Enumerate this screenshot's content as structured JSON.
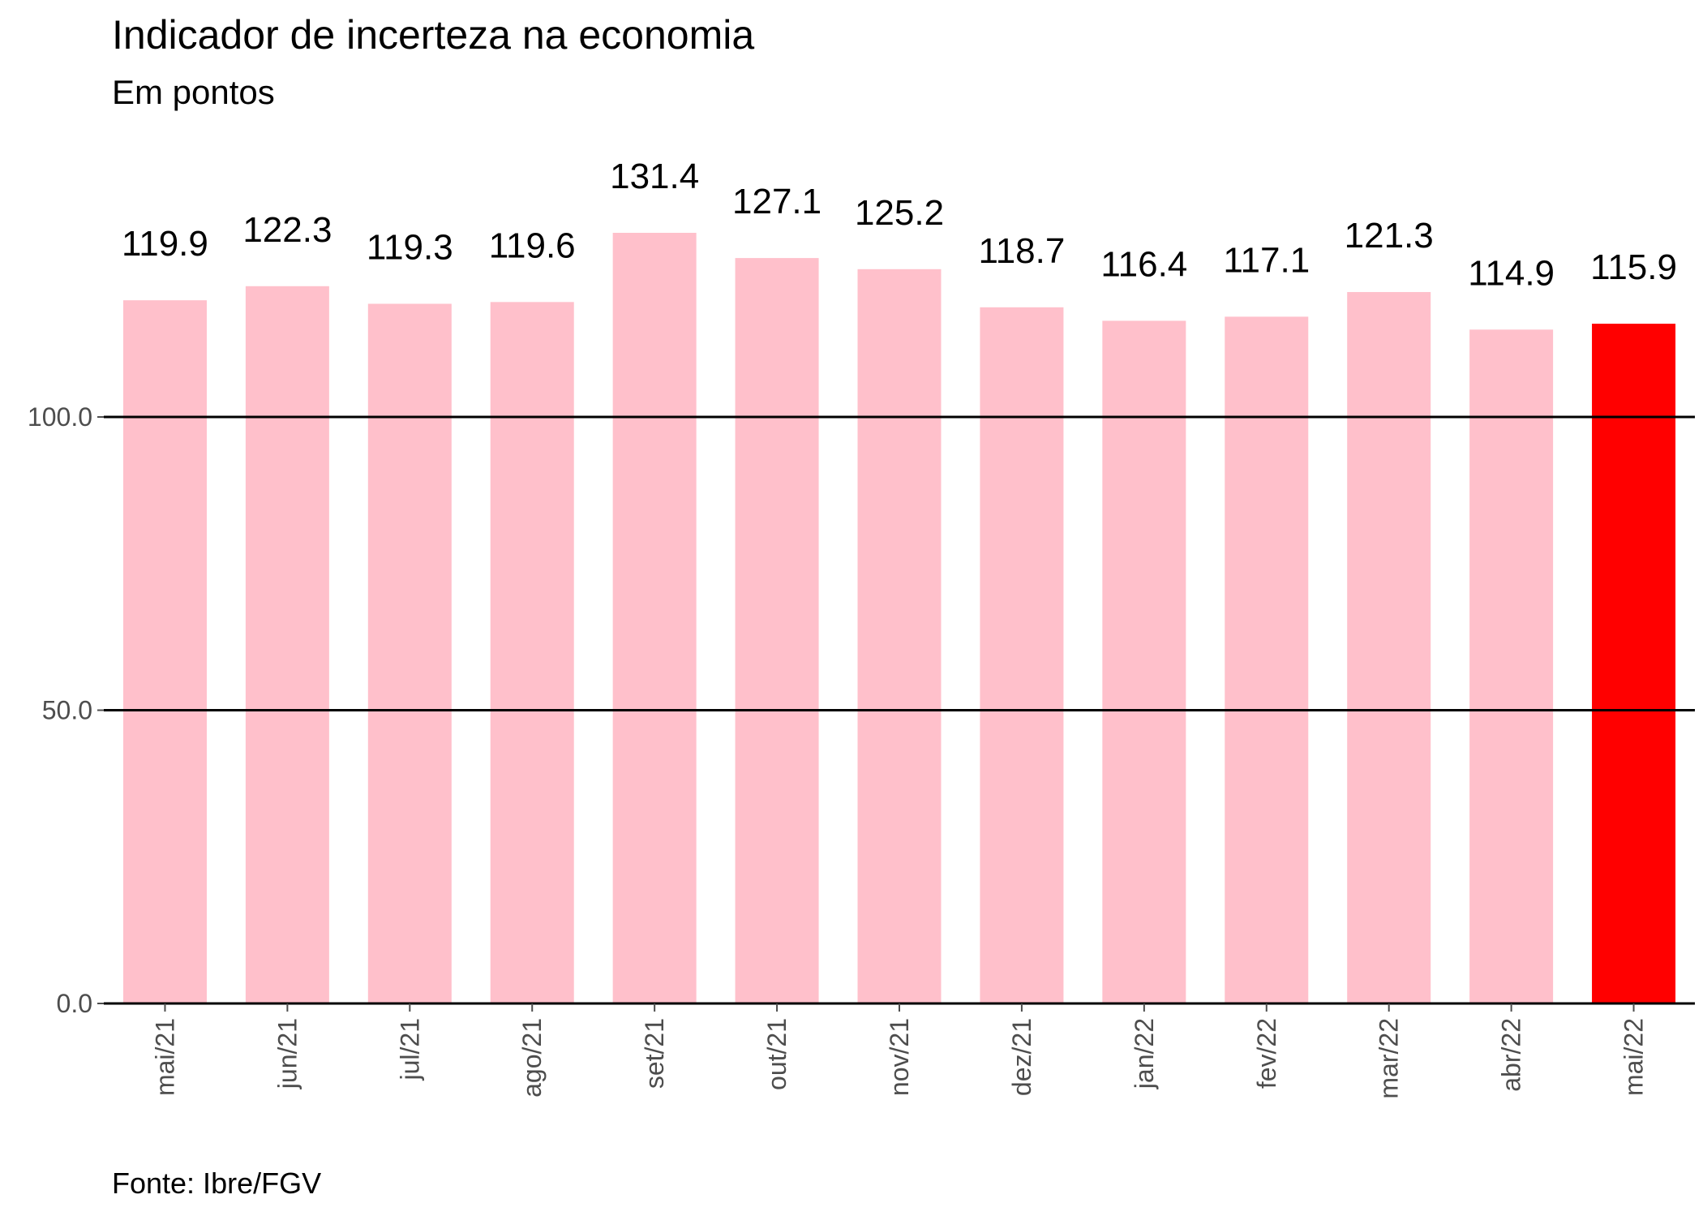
{
  "chart_data": {
    "type": "bar",
    "title": "Indicador de incerteza na economia",
    "subtitle": "Em pontos",
    "caption": "Fonte: Ibre/FGV",
    "xlabel": "",
    "ylabel": "",
    "categories": [
      "mai/21",
      "jun/21",
      "jul/21",
      "ago/21",
      "set/21",
      "out/21",
      "nov/21",
      "dez/21",
      "jan/22",
      "fev/22",
      "mar/22",
      "abr/22",
      "mai/22"
    ],
    "values": [
      119.9,
      122.3,
      119.3,
      119.6,
      131.4,
      127.1,
      125.2,
      118.7,
      116.4,
      117.1,
      121.3,
      114.9,
      115.9
    ],
    "value_labels": [
      "119.9",
      "122.3",
      "119.3",
      "119.6",
      "131.4",
      "127.1",
      "125.2",
      "118.7",
      "116.4",
      "117.1",
      "121.3",
      "114.9",
      "115.9"
    ],
    "ylim": [
      0,
      131.4
    ],
    "yticks": [
      0,
      50,
      100
    ],
    "ytick_labels": [
      "0.0",
      "50.0",
      "100.0"
    ],
    "grid": "horizontal",
    "colors": {
      "bar": "#ffc0cb",
      "highlight": "#ff0000",
      "gridline": "#000000",
      "tick_label": "#4d4d4d"
    },
    "highlight_index": 12
  }
}
